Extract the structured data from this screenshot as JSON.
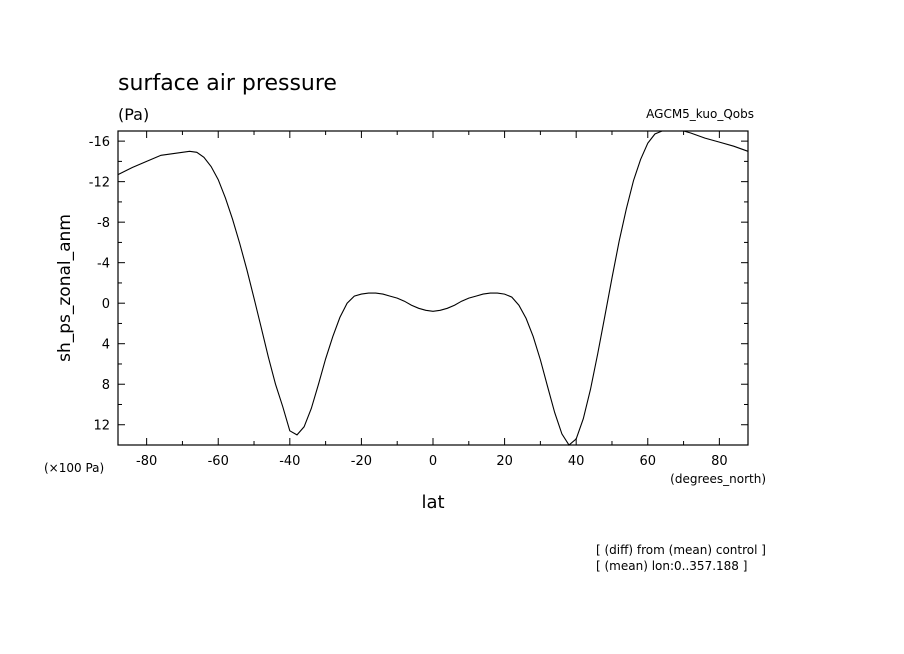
{
  "chart_data": {
    "type": "line",
    "title": "surface air pressure",
    "units": "(Pa)",
    "model_label": "AGCM5_kuo_Qobs",
    "xlabel": "lat",
    "ylabel": "sh_ps_zonal_anm",
    "y_scale_note": "(×100 Pa)",
    "x_units": "(degrees_north)",
    "notes": [
      "[ (diff) from (mean) control ]",
      "[ (mean) lon:0..357.188 ]"
    ],
    "xlim": [
      -88,
      88
    ],
    "ylim": [
      -17,
      14
    ],
    "y_inverted": true,
    "x_ticks": [
      -80,
      -60,
      -40,
      -20,
      0,
      20,
      40,
      60,
      80
    ],
    "y_ticks": [
      -16,
      -12,
      -8,
      -4,
      0,
      4,
      8,
      12
    ],
    "series": [
      {
        "x": [
          -88,
          -84,
          -80,
          -76,
          -72,
          -68,
          -66,
          -64,
          -62,
          -60,
          -58,
          -56,
          -54,
          -52,
          -50,
          -48,
          -46,
          -44,
          -42,
          -40,
          -38,
          -36,
          -34,
          -32,
          -30,
          -28,
          -26,
          -24,
          -22,
          -20,
          -18,
          -16,
          -14,
          -12,
          -10,
          -8,
          -6,
          -4,
          -2,
          0,
          2,
          4,
          6,
          8,
          10,
          12,
          14,
          16,
          18,
          20,
          22,
          24,
          26,
          28,
          30,
          32,
          34,
          36,
          38,
          40,
          42,
          44,
          46,
          48,
          50,
          52,
          54,
          56,
          58,
          60,
          62,
          64,
          66,
          68,
          70,
          72,
          76,
          80,
          84,
          88
        ],
        "y": [
          -12.7,
          -13.4,
          -14.0,
          -14.6,
          -14.8,
          -15.0,
          -14.9,
          -14.4,
          -13.5,
          -12.2,
          -10.4,
          -8.3,
          -5.9,
          -3.3,
          -0.5,
          2.4,
          5.3,
          8.0,
          10.2,
          12.6,
          13.0,
          12.2,
          10.4,
          8.0,
          5.5,
          3.3,
          1.4,
          0.0,
          -0.7,
          -0.9,
          -1.0,
          -1.0,
          -0.9,
          -0.7,
          -0.5,
          -0.2,
          0.2,
          0.5,
          0.7,
          0.8,
          0.7,
          0.5,
          0.2,
          -0.2,
          -0.5,
          -0.7,
          -0.9,
          -1.0,
          -1.0,
          -0.9,
          -0.6,
          0.2,
          1.5,
          3.3,
          5.6,
          8.2,
          10.8,
          12.9,
          14.0,
          13.4,
          11.4,
          8.5,
          5.0,
          1.3,
          -2.5,
          -6.1,
          -9.3,
          -12.1,
          -14.2,
          -15.8,
          -16.7,
          -17.2,
          -17.4,
          -17.4,
          -17.2,
          -16.8,
          -16.3,
          -15.9,
          -15.5,
          -15.0
        ]
      }
    ],
    "grid": false,
    "legend": "none"
  }
}
